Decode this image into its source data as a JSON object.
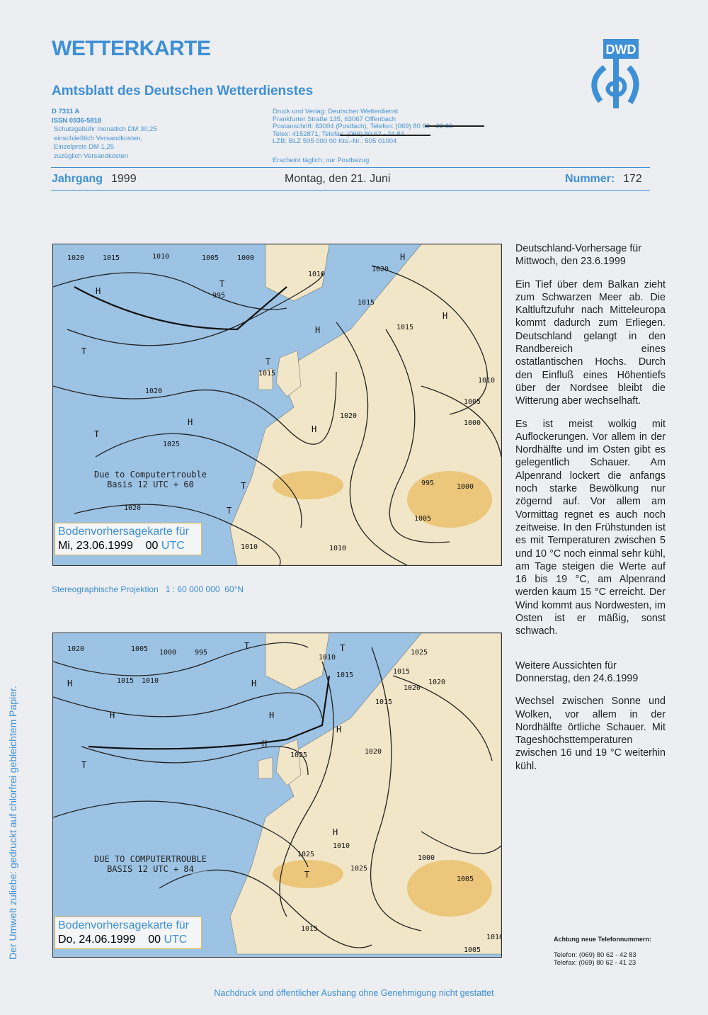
{
  "header": {
    "title": "WETTERKARTE",
    "subtitle": "Amtsblatt des Deutschen Wetterdienstes",
    "logo_text": "DWD",
    "code": "D 7311 A",
    "issn": "ISSN 0936-5818",
    "fee_lines": [
      "Schutzgebühr monatlich DM 30,25",
      "einschließlich Versandkosten,",
      "Einzelpreis DM 1,25",
      "zuzüglich Versandkosten"
    ],
    "publisher_lines": [
      "Druck und Verlag: Deutscher Wetterdienst",
      "Frankfurter Straße 135, 63067 Offenbach",
      "Postanschrift: 63004 (Postfach), Telefon: (069) 80 62 - 22 83",
      "Telex: 4152871, Telefax: (069) 80 62 - 24 84",
      "LZB: BLZ 505 000 00  Kto.-Nr.: 505 01004"
    ],
    "frequency": "Erscheint täglich; nur Postbezug",
    "year_label": "Jahrgang",
    "year": "1999",
    "date": "Montag, den 21. Juni",
    "number_label": "Nummer:",
    "number": "172"
  },
  "maps": [
    {
      "note_lines": [
        "Due to Computertrouble",
        "Basis 12 UTC + 60"
      ],
      "caption_title": "Bodenvorhersagekarte für",
      "caption_date": "Mi, 23.06.1999",
      "caption_time": "00",
      "caption_utc": "UTC",
      "labels": [
        "1020",
        "1015",
        "1010",
        "1005",
        "1000",
        "995",
        "1010",
        "1020",
        "1015",
        "1020",
        "1015",
        "1010",
        "1005",
        "1000",
        "1020",
        "1025",
        "1020",
        "1010",
        "995",
        "1000",
        "1005",
        "1010",
        "1015",
        "H",
        "H",
        "H",
        "H",
        "H",
        "H",
        "T",
        "T",
        "T",
        "T",
        "T",
        "T"
      ]
    },
    {
      "note_lines": [
        "DUE TO COMPUTERTROUBLE",
        "BASIS 12 UTC + 84"
      ],
      "caption_title": "Bodenvorhersagekarte für",
      "caption_date": "Do, 24.06.1999",
      "caption_time": "00",
      "caption_utc": "UTC",
      "labels": [
        "1020",
        "1005",
        "1000",
        "995",
        "1015",
        "1010",
        "1010",
        "1015",
        "1025",
        "1020",
        "1015",
        "1020",
        "1025",
        "1010",
        "1005",
        "1025",
        "1025",
        "1015",
        "1000",
        "1005",
        "1020",
        "1015",
        "1010",
        "H",
        "H",
        "H",
        "H",
        "H",
        "H",
        "H",
        "T",
        "T",
        "T",
        "T"
      ]
    }
  ],
  "projection": "Stereographische Projektion   1 : 60 000 000  60°N",
  "forecast": {
    "heading1": "Deutschland-Vorhersage für Mittwoch, den 23.6.1999",
    "para1": "Ein Tief über dem Balkan zieht zum Schwarzen Meer ab. Die Kaltluftzufuhr nach Mitteleuropa kommt dadurch zum Erliegen. Deutschland gelangt in den Randbereich eines ostatlantischen Hochs. Durch den Einfluß eines Höhentiefs über der Nordsee bleibt die Witterung aber wechselhaft.",
    "para2": "Es ist meist wolkig mit Auflockerungen. Vor allem in der Nordhälfte und im Osten gibt es gelegentlich Schauer. Am Alpenrand lockert die anfangs noch starke Bewölkung nur zögernd auf. Vor allem am Vormittag regnet es auch noch zeitweise. In den Frühstunden ist es mit Temperaturen zwischen 5 und 10 °C noch einmal sehr kühl, am Tage steigen die Werte auf 16 bis 19 °C, am Alpenrand werden kaum 15 °C erreicht. Der Wind kommt aus Nordwesten, im Osten ist er mäßig, sonst schwach.",
    "heading2": "Weitere Aussichten für Donnerstag, den 24.6.1999",
    "para3": "Wechsel zwischen Sonne und Wolken, vor allem in der Nordhälfte örtliche Schauer. Mit Tageshöchsttemperaturen zwischen 16 und 19 °C weiterhin kühl."
  },
  "phone_notice": {
    "title": "Achtung neue Telefonnummern:",
    "phone": "Telefon: (069) 80 62 - 42 83",
    "fax": "Telefax: (069) 80 62 - 41 23"
  },
  "side_note": "Der Umwelt zuliebe: gedruckt auf chlorfrei gebleichtem Papier.",
  "footer": "Nachdruck und öffentlicher Aushang ohne Genehmigung nicht gestattet",
  "colors": {
    "brand": "#3d8fd6",
    "sea": "#9cc3e4",
    "land": "#f1e6c8",
    "highland": "#e9b95a"
  }
}
